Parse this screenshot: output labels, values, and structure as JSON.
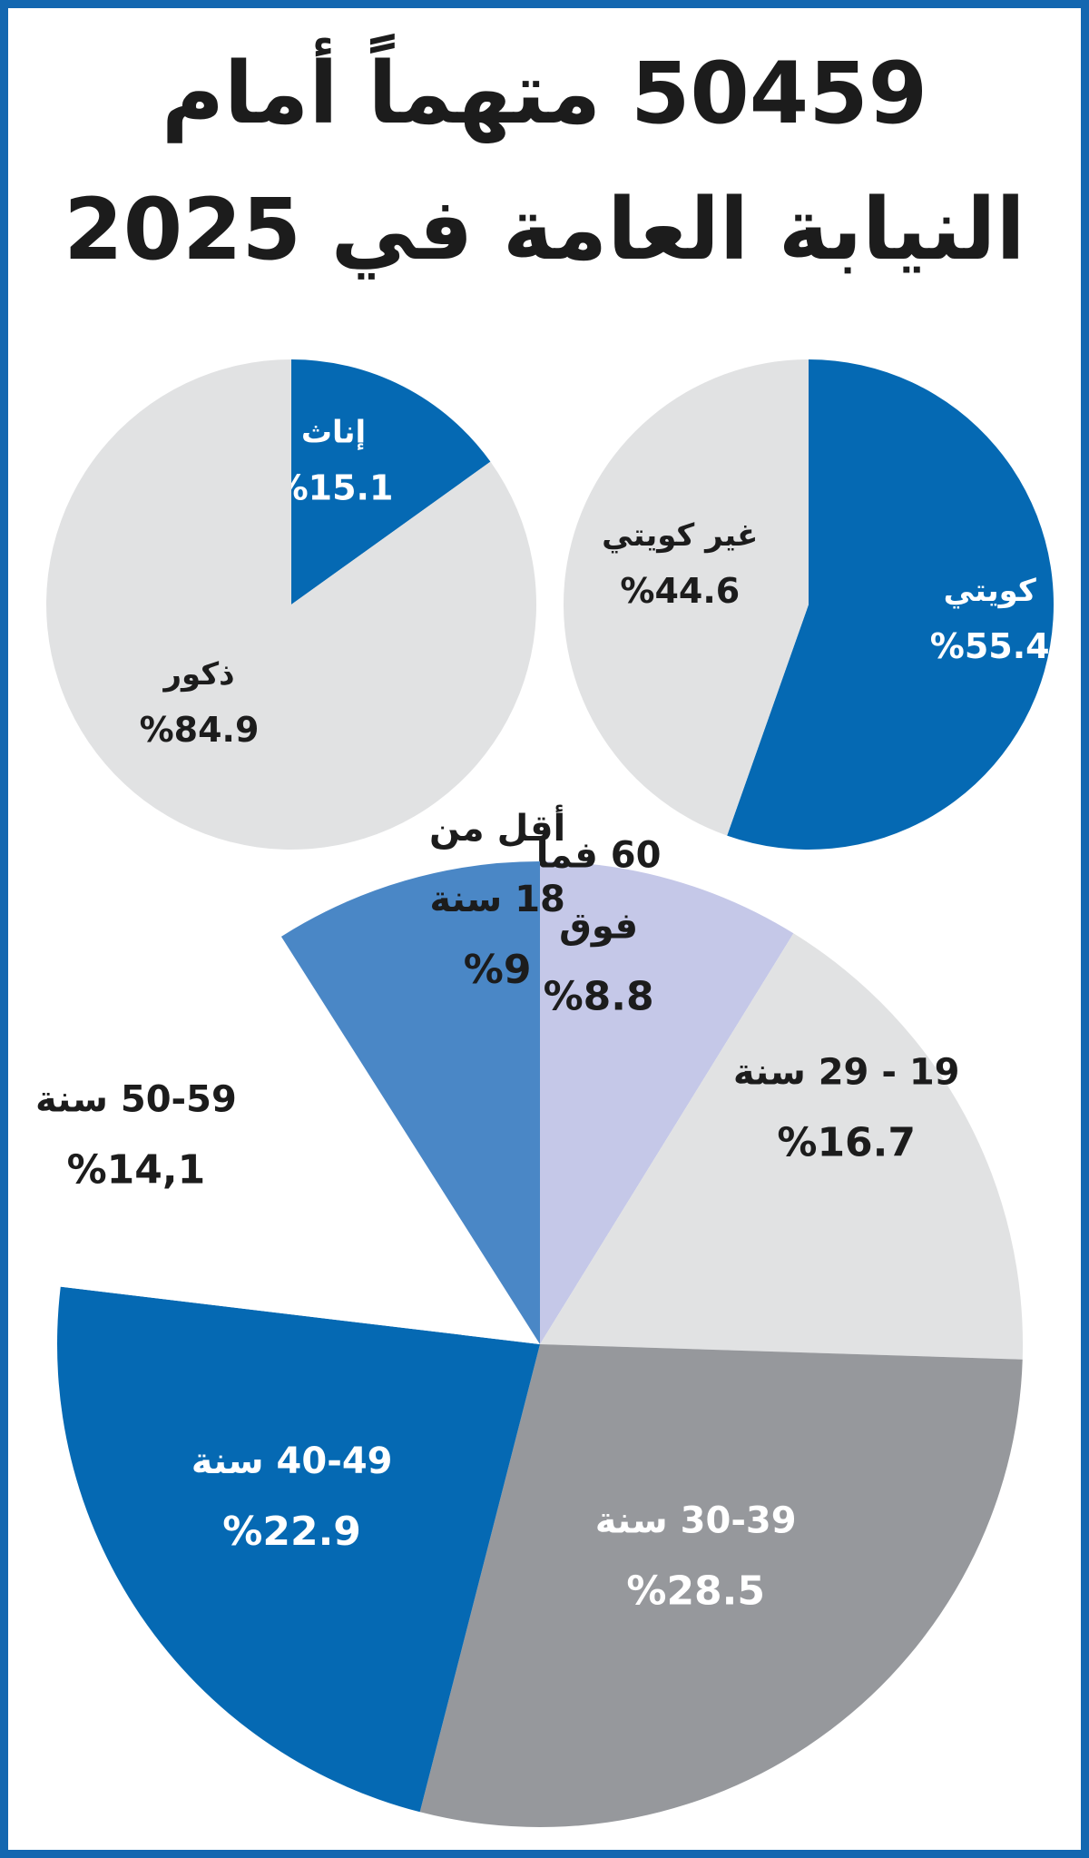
{
  "title": "50459 متهماً أمام النيابة العامة في 2025",
  "colors": {
    "frame": "#1367b0",
    "blue": "#0569b3",
    "mid_blue": "#4a87c6",
    "lavender": "#c5c8e8",
    "light_gray": "#e1e2e3",
    "dark_gray": "#96989c",
    "white": "#ffffff",
    "text_dark": "#1c1c1c",
    "text_light": "#ffffff"
  },
  "chart_data": [
    {
      "type": "pie",
      "name": "nationality",
      "slices": [
        {
          "label": "كويتي",
          "value_label": "%55.4",
          "value": 55.4,
          "color": "#0569b3",
          "text_color": "#ffffff"
        },
        {
          "label": "غير كويتي",
          "value_label": "%44.6",
          "value": 44.6,
          "color": "#e1e2e3",
          "text_color": "#1c1c1c"
        }
      ]
    },
    {
      "type": "pie",
      "name": "gender",
      "slices": [
        {
          "label": "إناث",
          "value_label": "%15.1",
          "value": 15.1,
          "color": "#0569b3",
          "text_color": "#ffffff"
        },
        {
          "label": "ذكور",
          "value_label": "%84.9",
          "value": 84.9,
          "color": "#e1e2e3",
          "text_color": "#1c1c1c"
        }
      ]
    },
    {
      "type": "pie",
      "name": "age",
      "slices": [
        {
          "label_lines": [
            "60 فما",
            "فوق"
          ],
          "value_label": "%8.8",
          "value": 8.8,
          "color": "#c5c8e8",
          "text_color": "#1c1c1c"
        },
        {
          "label_lines": [
            "19 - 29 سنة"
          ],
          "value_label": "%16.7",
          "value": 16.7,
          "color": "#e1e2e3",
          "text_color": "#1c1c1c"
        },
        {
          "label_lines": [
            "30-39 سنة"
          ],
          "value_label": "%28.5",
          "value": 28.5,
          "color": "#96989c",
          "text_color": "#ffffff"
        },
        {
          "label_lines": [
            "40-49 سنة"
          ],
          "value_label": "%22.9",
          "value": 22.9,
          "color": "#0569b3",
          "text_color": "#ffffff"
        },
        {
          "label_lines": [
            "50-59 سنة"
          ],
          "value_label": "%14,1",
          "value": 14.1,
          "color": "#ffffff",
          "text_color": "#1c1c1c"
        },
        {
          "label_lines": [
            "أقل من",
            "18 سنة"
          ],
          "value_label": "%9",
          "value": 9,
          "color": "#4a87c6",
          "text_color": "#1c1c1c"
        }
      ]
    }
  ]
}
